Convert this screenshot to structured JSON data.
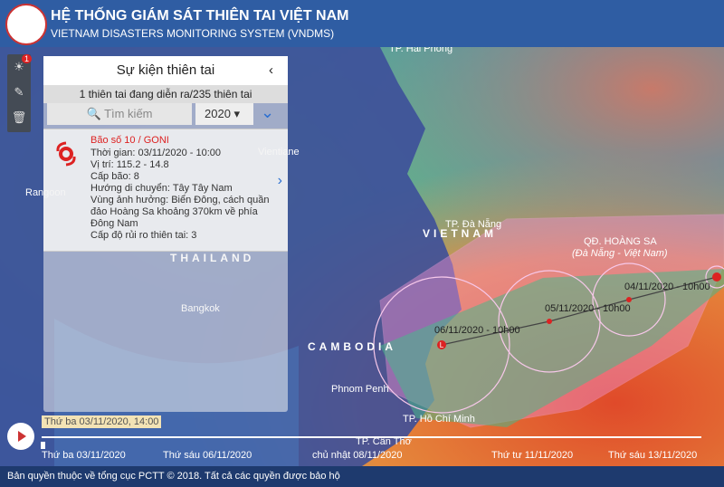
{
  "header": {
    "title": "HỆ THỐNG GIÁM SÁT THIÊN TAI VIỆT NAM",
    "subtitle": "VIETNAM DISASTERS MONITORING SYSTEM (VNDMS)"
  },
  "toolbar": {
    "badge": "1"
  },
  "panel": {
    "title": "Sự kiện thiên tai",
    "summary": "1 thiên tai đang diễn ra/235 thiên tai",
    "search_placeholder": "Tìm kiếm",
    "year": "2020",
    "event": {
      "name": "Bão số 10 / GONI",
      "lines": [
        "Thời gian: 03/11/2020 - 10:00",
        "Vị trí: 115.2 - 14.8",
        "Cấp bão: 8",
        "Hướng di chuyển: Tây Tây Nam",
        "Vùng ảnh hưởng: Biển Đông, cách quần đảo Hoàng Sa khoảng 370km về phía Đông Nam",
        "Cấp độ rủi ro thiên tai: 3"
      ]
    }
  },
  "map": {
    "labels": [
      "TP. Hải Phòng",
      "Vientiane",
      "Rangoon",
      "THAILAND",
      "Bangkok",
      "TP. Đà Nẵng",
      "VIETNAM",
      "QĐ. HOÀNG SA",
      "(Đà Nẵng - Việt Nam)",
      "CAMBODIA",
      "Phnom Penh",
      "TP. Hồ Chí Minh",
      "TP. Cần Thơ"
    ],
    "track": [
      "04/11/2020 - 10h00",
      "05/11/2020 - 10h00",
      "06/11/2020 - 10h00"
    ],
    "marker": "L"
  },
  "timeline": {
    "current": "Thứ ba 03/11/2020, 14:00",
    "ticks": [
      "Thứ ba 03/11/2020",
      "Thứ sáu 06/11/2020",
      "chủ nhật 08/11/2020",
      "Thứ tư 11/11/2020",
      "Thứ sáu 13/11/2020"
    ]
  },
  "footer": {
    "text": "Bản quyền thuộc về tổng cục PCTT © 2018. Tất cả các quyền được bảo hộ"
  }
}
